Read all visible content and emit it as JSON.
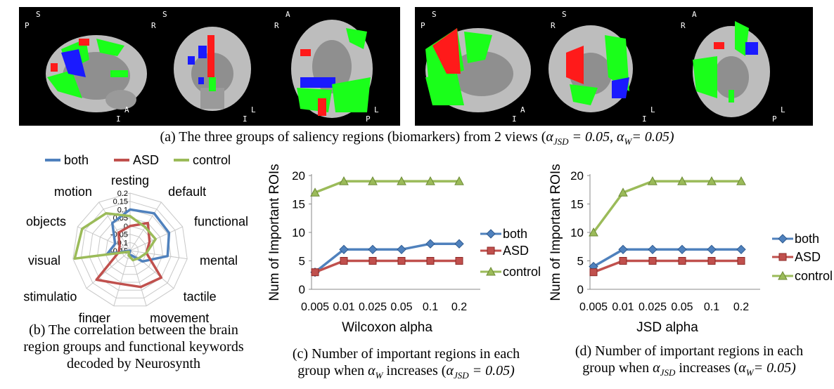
{
  "brain_views": {
    "orientation_labels": {
      "left": [
        [
          "S",
          "P",
          "I",
          "A"
        ],
        [
          "S",
          "R",
          "I",
          "L"
        ],
        [
          "A",
          "R",
          "P",
          "L"
        ]
      ],
      "right": [
        [
          "S",
          "P",
          "I",
          "A"
        ],
        [
          "S",
          "R",
          "I",
          "L"
        ],
        [
          "A",
          "R",
          "P",
          "L"
        ]
      ]
    },
    "region_colors": {
      "both": "#1a1aff",
      "ASD": "#ff1a1a",
      "control": "#1aff1a"
    }
  },
  "captions": {
    "a_main": "(a) The three groups of saliency regions (biomarkers) from 2 views (",
    "a_alpha1": "α",
    "a_sub1": "JSD",
    "a_eq1": " = 0.05, ",
    "a_alpha2": "α",
    "a_sub2": "W",
    "a_eq2": "= 0.05)",
    "b_line1": "(b) The correlation between the brain",
    "b_line2": "region groups and functional keywords",
    "b_line3": "decoded by Neurosynth",
    "c_line1": "(c) Number of important regions in each",
    "c_line2a": "group when ",
    "c_alpha": "α",
    "c_sub": "W",
    "c_line2b": " increases (",
    "c_alpha2": "α",
    "c_sub2": "JSD",
    "c_line2c": " = 0.05)",
    "d_line1": "(d) Number of important regions in each",
    "d_line2a": "group when ",
    "d_alpha": "α",
    "d_sub": "JSD",
    "d_line2b": " increases (",
    "d_alpha2": "α",
    "d_sub2": "W",
    "d_line2c": "= 0.05)"
  },
  "chart_data": [
    {
      "id": "b",
      "type": "radar",
      "legend": [
        "both",
        "ASD",
        "control"
      ],
      "axes": [
        "resting",
        "default",
        "functional",
        "mental",
        "tactile",
        "movement",
        "finger",
        "stimulatio",
        "visual",
        "objects",
        "motion"
      ],
      "range": [
        -0.15,
        0.2
      ],
      "ticks": [
        "0.2",
        "0.15",
        "0.1",
        "0.05",
        "0",
        "-0.05",
        "-0.1",
        "-0.15"
      ],
      "series": [
        {
          "name": "both",
          "color": "#4f81bd",
          "values": [
            0.1,
            0.12,
            0.11,
            0.08,
            -0.05,
            -0.12,
            -0.12,
            -0.15,
            -0.01,
            -0.05,
            0.05
          ]
        },
        {
          "name": "ASD",
          "color": "#c0504d",
          "values": [
            0.0,
            0.05,
            -0.02,
            -0.05,
            0.1,
            0.08,
            0.06,
            0.12,
            -0.08,
            -0.08,
            -0.02
          ]
        },
        {
          "name": "control",
          "color": "#9bbb59",
          "values": [
            0.06,
            0.02,
            0.02,
            -0.05,
            -0.08,
            -0.09,
            -0.12,
            -0.14,
            0.19,
            0.17,
            0.12
          ]
        }
      ]
    },
    {
      "id": "c",
      "type": "line",
      "categories": [
        "0.005",
        "0.01",
        "0.025",
        "0.05",
        "0.1",
        "0.2"
      ],
      "xlabel": "Wilcoxon alpha",
      "ylabel": "Num of Important ROIs",
      "ylim": [
        0,
        20
      ],
      "yticks": [
        "0",
        "5",
        "10",
        "15",
        "20"
      ],
      "series": [
        {
          "name": "both",
          "color": "#4f81bd",
          "marker": "diamond",
          "values": [
            3,
            7,
            7,
            7,
            8,
            8
          ]
        },
        {
          "name": "ASD",
          "color": "#c0504d",
          "marker": "square",
          "values": [
            3,
            5,
            5,
            5,
            5,
            5
          ]
        },
        {
          "name": "control",
          "color": "#9bbb59",
          "marker": "triangle",
          "values": [
            17,
            19,
            19,
            19,
            19,
            19
          ]
        }
      ]
    },
    {
      "id": "d",
      "type": "line",
      "categories": [
        "0.005",
        "0.01",
        "0.025",
        "0.05",
        "0.1",
        "0.2"
      ],
      "xlabel": "JSD alpha",
      "ylabel": "Num of Important ROIs",
      "ylim": [
        0,
        20
      ],
      "yticks": [
        "0",
        "5",
        "10",
        "15",
        "20"
      ],
      "series": [
        {
          "name": "both",
          "color": "#4f81bd",
          "marker": "diamond",
          "values": [
            4,
            7,
            7,
            7,
            7,
            7
          ]
        },
        {
          "name": "ASD",
          "color": "#c0504d",
          "marker": "square",
          "values": [
            3,
            5,
            5,
            5,
            5,
            5
          ]
        },
        {
          "name": "control",
          "color": "#9bbb59",
          "marker": "triangle",
          "values": [
            10,
            17,
            19,
            19,
            19,
            19
          ]
        }
      ]
    }
  ]
}
